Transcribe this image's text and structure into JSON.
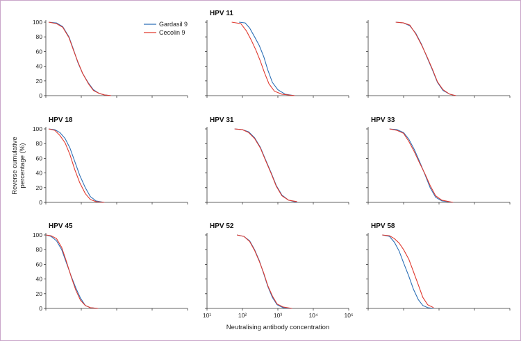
{
  "chart_data": {
    "type": "line",
    "xlabel": "Neutralising antibody concentration",
    "ylabel": "Reverse cumulative percentage (%)",
    "x_scale": "log",
    "xlim": [
      10,
      100000
    ],
    "ylim": [
      0,
      100
    ],
    "yticks": [
      0,
      20,
      40,
      60,
      80,
      100
    ],
    "x_tick_labels": [
      "10¹",
      "10²",
      "10³",
      "10⁴",
      "10⁵"
    ],
    "legend": {
      "placement": "top-left of panel HPV 11",
      "entries": [
        "Gardasil 9",
        "Cecolin 9"
      ]
    },
    "colors": {
      "Gardasil 9": "#2c6fb6",
      "Cecolin 9": "#e03a2f"
    },
    "panels": [
      {
        "title": "",
        "series": [
          {
            "name": "Gardasil 9",
            "x": [
              12,
              20,
              30,
              45,
              60,
              80,
              110,
              160,
              220,
              320,
              450,
              700
            ],
            "y": [
              100,
              99,
              94,
              80,
              63,
              45,
              30,
              17,
              8,
              3,
              1,
              0
            ]
          },
          {
            "name": "Cecolin 9",
            "x": [
              12,
              20,
              30,
              45,
              60,
              80,
              110,
              160,
              220,
              320,
              450,
              700
            ],
            "y": [
              100,
              98,
              93,
              79,
              62,
              46,
              30,
              16,
              7,
              3,
              1,
              0
            ]
          }
        ]
      },
      {
        "title": "HPV 11",
        "series": [
          {
            "name": "Gardasil 9",
            "x": [
              80,
              120,
              160,
              220,
              300,
              400,
              520,
              700,
              1000,
              1600,
              3000
            ],
            "y": [
              100,
              99,
              92,
              80,
              68,
              53,
              35,
              18,
              8,
              2,
              0
            ]
          },
          {
            "name": "Cecolin 9",
            "x": [
              50,
              90,
              130,
              180,
              240,
              320,
              420,
              560,
              800,
              1300,
              3000
            ],
            "y": [
              100,
              98,
              88,
              75,
              62,
              47,
              31,
              16,
              6,
              2,
              0
            ]
          }
        ]
      },
      {
        "title": "",
        "series": [
          {
            "name": "Gardasil 9",
            "x": [
              60,
              100,
              150,
              220,
              320,
              450,
              650,
              900,
              1300,
              2000,
              3000
            ],
            "y": [
              100,
              99,
              95,
              85,
              70,
              53,
              35,
              18,
              7,
              2,
              0
            ]
          },
          {
            "name": "Cecolin 9",
            "x": [
              60,
              100,
              150,
              220,
              320,
              450,
              650,
              900,
              1300,
              2000,
              3000
            ],
            "y": [
              100,
              99,
              96,
              84,
              69,
              54,
              36,
              19,
              8,
              2,
              0
            ]
          }
        ]
      },
      {
        "title": "HPV 18",
        "series": [
          {
            "name": "Gardasil 9",
            "x": [
              12,
              18,
              25,
              35,
              48,
              65,
              90,
              130,
              180,
              260,
              450
            ],
            "y": [
              100,
              99,
              95,
              87,
              74,
              56,
              37,
              20,
              8,
              2,
              0
            ]
          },
          {
            "name": "Cecolin 9",
            "x": [
              12,
              18,
              25,
              35,
              48,
              65,
              90,
              130,
              180,
              260,
              450
            ],
            "y": [
              100,
              98,
              91,
              81,
              65,
              45,
              27,
              12,
              4,
              1,
              0
            ]
          }
        ]
      },
      {
        "title": "HPV 31",
        "series": [
          {
            "name": "Gardasil 9",
            "x": [
              60,
              100,
              150,
              220,
              320,
              450,
              650,
              900,
              1300,
              2000,
              3500
            ],
            "y": [
              100,
              99,
              96,
              88,
              75,
              58,
              40,
              23,
              10,
              3,
              0
            ]
          },
          {
            "name": "Cecolin 9",
            "x": [
              60,
              100,
              150,
              220,
              320,
              450,
              650,
              900,
              1300,
              2000,
              3500
            ],
            "y": [
              100,
              99,
              95,
              87,
              74,
              57,
              39,
              22,
              9,
              3,
              1
            ]
          }
        ]
      },
      {
        "title": "HPV 33",
        "series": [
          {
            "name": "Gardasil 9",
            "x": [
              40,
              65,
              100,
              140,
              200,
              280,
              400,
              560,
              800,
              1200,
              2500
            ],
            "y": [
              100,
              99,
              95,
              86,
              72,
              56,
              38,
              20,
              7,
              2,
              0
            ]
          },
          {
            "name": "Cecolin 9",
            "x": [
              40,
              65,
              100,
              140,
              200,
              280,
              400,
              560,
              800,
              1200,
              2500
            ],
            "y": [
              100,
              98,
              94,
              83,
              69,
              54,
              39,
              23,
              9,
              3,
              0
            ]
          }
        ]
      },
      {
        "title": "HPV 45",
        "series": [
          {
            "name": "Gardasil 9",
            "x": [
              10,
              14,
              20,
              28,
              38,
              52,
              70,
              95,
              130,
              180,
              300
            ],
            "y": [
              100,
              98,
              92,
              80,
              62,
              44,
              28,
              14,
              4,
              1,
              0
            ]
          },
          {
            "name": "Cecolin 9",
            "x": [
              10,
              14,
              20,
              28,
              38,
              52,
              70,
              95,
              130,
              180,
              300
            ],
            "y": [
              100,
              99,
              95,
              83,
              64,
              43,
              25,
              11,
              4,
              1,
              0
            ]
          }
        ]
      },
      {
        "title": "HPV 52",
        "series": [
          {
            "name": "Gardasil 9",
            "x": [
              70,
              110,
              160,
              220,
              300,
              400,
              520,
              700,
              950,
              1400,
              2500
            ],
            "y": [
              100,
              98,
              92,
              80,
              65,
              47,
              30,
              15,
              5,
              1,
              0
            ]
          },
          {
            "name": "Cecolin 9",
            "x": [
              70,
              110,
              160,
              220,
              300,
              400,
              520,
              700,
              950,
              1400,
              2500
            ],
            "y": [
              100,
              98,
              91,
              79,
              64,
              48,
              31,
              17,
              6,
              2,
              0
            ]
          }
        ]
      },
      {
        "title": "HPV 58",
        "series": [
          {
            "name": "Gardasil 9",
            "x": [
              25,
              40,
              55,
              75,
              100,
              140,
              190,
              260,
              350,
              480,
              700
            ],
            "y": [
              100,
              98,
              90,
              78,
              62,
              44,
              26,
              12,
              4,
              1,
              0
            ]
          },
          {
            "name": "Cecolin 9",
            "x": [
              25,
              40,
              55,
              75,
              100,
              140,
              190,
              260,
              350,
              480,
              700
            ],
            "y": [
              100,
              99,
              95,
              89,
              80,
              67,
              50,
              32,
              15,
              5,
              1
            ]
          }
        ]
      }
    ]
  }
}
